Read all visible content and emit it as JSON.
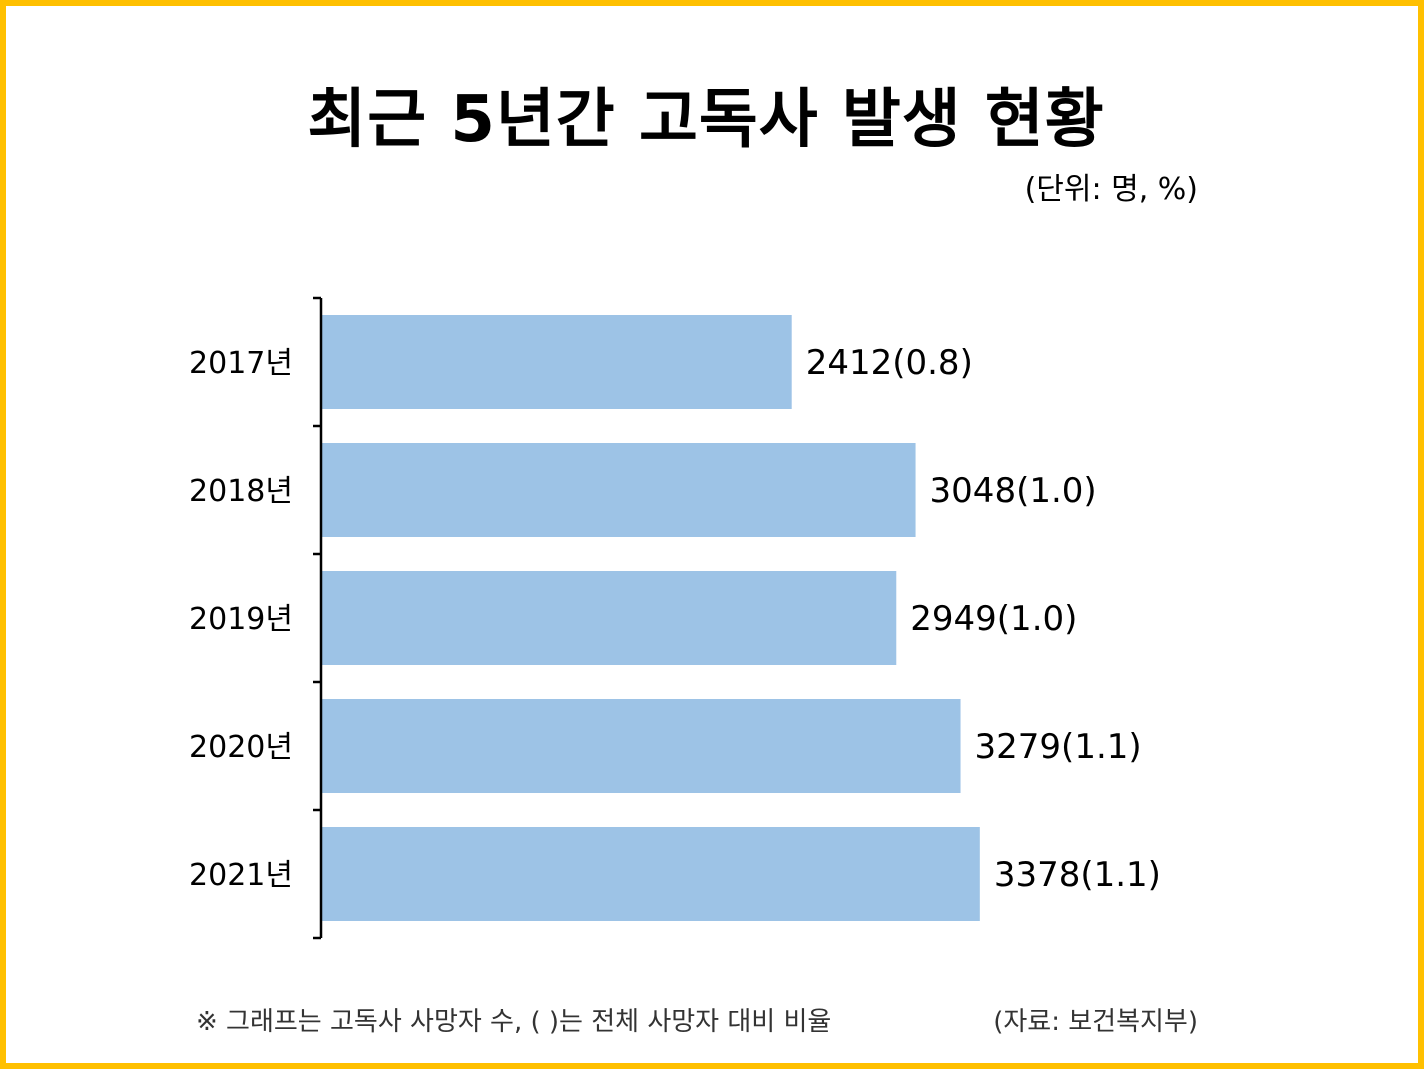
{
  "title": "최근 5년간 고독사 발생 현황",
  "unit_label": "(단위: 명, %)",
  "footnote": "※ 그래프는 고독사 사망자 수, ( )는 전체 사망자 대비 비율",
  "source": "(자료: 보건복지부)",
  "colors": {
    "border": "#FFC000",
    "bar": "#9DC3E6",
    "text": "#000000"
  },
  "chart_data": {
    "type": "bar",
    "orientation": "horizontal",
    "categories": [
      "2017년",
      "2018년",
      "2019년",
      "2020년",
      "2021년"
    ],
    "values": [
      2412,
      3048,
      2949,
      3279,
      3378
    ],
    "percents": [
      0.8,
      1.0,
      1.0,
      1.1,
      1.1
    ],
    "data_labels": [
      "2412(0.8)",
      "3048(1.0)",
      "2949(1.0)",
      "3279(1.1)",
      "3378(1.1)"
    ],
    "xlim": [
      0,
      3800
    ],
    "grid": false
  }
}
